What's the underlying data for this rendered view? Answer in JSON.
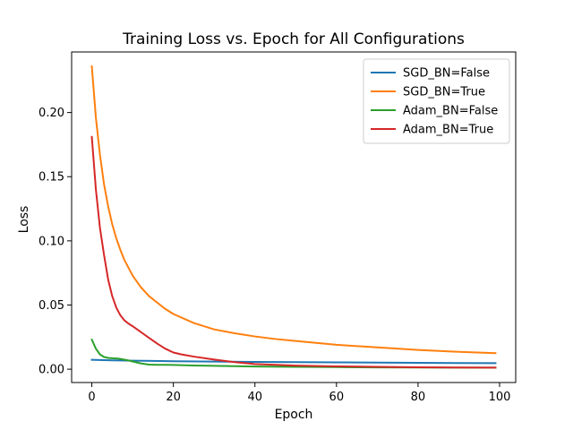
{
  "chart_data": {
    "type": "line",
    "title": "Training Loss vs. Epoch for All Configurations",
    "xlabel": "Epoch",
    "ylabel": "Loss",
    "xlim": [
      -4.95,
      103.95
    ],
    "ylim": [
      -0.0104,
      0.2472
    ],
    "xticks": [
      0,
      20,
      40,
      60,
      80,
      100
    ],
    "xtick_labels": [
      "0",
      "20",
      "40",
      "60",
      "80",
      "100"
    ],
    "yticks": [
      0.0,
      0.05,
      0.1,
      0.15,
      0.2
    ],
    "ytick_labels": [
      "0.00",
      "0.05",
      "0.10",
      "0.15",
      "0.20"
    ],
    "grid": false,
    "legend_position": "top-right",
    "series": [
      {
        "name": "SGD_BN=False",
        "color": "#1f77b4",
        "x": [
          0,
          5,
          10,
          15,
          20,
          30,
          40,
          50,
          60,
          70,
          80,
          90,
          99
        ],
        "y": [
          0.0073,
          0.0069,
          0.0066,
          0.0064,
          0.0062,
          0.0059,
          0.0057,
          0.0055,
          0.0053,
          0.0051,
          0.005,
          0.0048,
          0.0047
        ]
      },
      {
        "name": "SGD_BN=True",
        "color": "#ff7f0e",
        "x": [
          0,
          1,
          2,
          3,
          4,
          5,
          6,
          7,
          8,
          9,
          10,
          12,
          14,
          16,
          18,
          20,
          25,
          30,
          35,
          40,
          45,
          50,
          60,
          70,
          80,
          90,
          99
        ],
        "y": [
          0.236,
          0.196,
          0.167,
          0.144,
          0.127,
          0.113,
          0.102,
          0.093,
          0.085,
          0.079,
          0.073,
          0.064,
          0.057,
          0.052,
          0.047,
          0.043,
          0.036,
          0.031,
          0.028,
          0.0255,
          0.0235,
          0.022,
          0.019,
          0.017,
          0.015,
          0.0135,
          0.0125
        ]
      },
      {
        "name": "Adam_BN=False",
        "color": "#2ca02c",
        "x": [
          0,
          1,
          2,
          3,
          4,
          5,
          6,
          7,
          8,
          9,
          10,
          12,
          14,
          16,
          18,
          20,
          25,
          30,
          40,
          50,
          60,
          70,
          80,
          90,
          99
        ],
        "y": [
          0.023,
          0.016,
          0.0115,
          0.0095,
          0.0088,
          0.0085,
          0.0084,
          0.008,
          0.0074,
          0.0068,
          0.006,
          0.0045,
          0.0036,
          0.0034,
          0.0034,
          0.0033,
          0.0029,
          0.0026,
          0.0021,
          0.0018,
          0.0016,
          0.0014,
          0.0013,
          0.0012,
          0.0012
        ]
      },
      {
        "name": "Adam_BN=True",
        "color": "#d62728",
        "x": [
          0,
          1,
          2,
          3,
          4,
          5,
          6,
          7,
          8,
          9,
          10,
          12,
          14,
          16,
          18,
          20,
          22,
          25,
          30,
          35,
          40,
          50,
          60,
          70,
          80,
          90,
          99
        ],
        "y": [
          0.181,
          0.14,
          0.11,
          0.089,
          0.07,
          0.057,
          0.048,
          0.042,
          0.038,
          0.0355,
          0.0335,
          0.029,
          0.0245,
          0.02,
          0.016,
          0.013,
          0.0115,
          0.0098,
          0.0075,
          0.0055,
          0.004,
          0.0028,
          0.0022,
          0.0018,
          0.0015,
          0.0013,
          0.0012
        ]
      }
    ]
  }
}
